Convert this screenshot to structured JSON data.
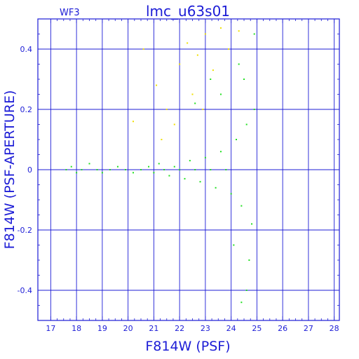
{
  "chart_data": {
    "type": "scatter",
    "title": "lmc_u63s01",
    "corner_label": "WF3",
    "xlabel": "F814W (PSF)",
    "ylabel": "F814W (PSF-APERTURE)",
    "xlim": [
      16.5,
      28.2
    ],
    "ylim": [
      -0.5,
      0.5
    ],
    "x_ticks": [
      17,
      18,
      19,
      20,
      21,
      22,
      23,
      24,
      25,
      26,
      27,
      28
    ],
    "y_ticks": [
      -0.4,
      -0.2,
      0,
      0.2,
      0.4
    ],
    "grid": true,
    "colors": {
      "axis": "#1c1cd6",
      "primary_points": "#22e022",
      "secondary_points": "#f0e000",
      "background": "#ffffff"
    },
    "series": [
      {
        "color": "#22e022",
        "points": [
          [
            17.6,
            0.0
          ],
          [
            17.8,
            0.01
          ],
          [
            18.0,
            -0.01
          ],
          [
            18.2,
            0.0
          ],
          [
            18.5,
            0.02
          ],
          [
            18.8,
            0.0
          ],
          [
            19.0,
            -0.01
          ],
          [
            19.3,
            0.0
          ],
          [
            19.6,
            0.01
          ],
          [
            19.9,
            0.0
          ],
          [
            20.2,
            -0.01
          ],
          [
            20.5,
            0.0
          ],
          [
            20.8,
            0.01
          ],
          [
            21.0,
            -0.01
          ],
          [
            21.2,
            0.02
          ],
          [
            21.4,
            0.0
          ],
          [
            21.6,
            -0.02
          ],
          [
            21.8,
            0.01
          ],
          [
            22.0,
            0.0
          ],
          [
            22.2,
            -0.03
          ],
          [
            22.4,
            0.03
          ],
          [
            22.6,
            0.0
          ],
          [
            22.8,
            -0.04
          ],
          [
            23.0,
            0.04
          ],
          [
            23.2,
            0.0
          ],
          [
            23.4,
            -0.06
          ],
          [
            23.6,
            0.06
          ],
          [
            23.8,
            0.0
          ],
          [
            24.0,
            -0.08
          ],
          [
            24.2,
            0.1
          ],
          [
            24.4,
            -0.12
          ],
          [
            24.6,
            0.15
          ],
          [
            24.8,
            -0.18
          ],
          [
            24.9,
            0.2
          ],
          [
            24.5,
            0.3
          ],
          [
            24.7,
            -0.3
          ],
          [
            24.3,
            0.35
          ],
          [
            24.6,
            -0.4
          ],
          [
            23.6,
            0.25
          ],
          [
            24.1,
            -0.25
          ],
          [
            24.9,
            0.45
          ],
          [
            23.2,
            0.3
          ],
          [
            22.6,
            0.22
          ],
          [
            24.4,
            -0.44
          ]
        ]
      },
      {
        "color": "#f0e000",
        "points": [
          [
            20.6,
            0.4
          ],
          [
            21.1,
            0.28
          ],
          [
            21.5,
            0.2
          ],
          [
            22.0,
            0.35
          ],
          [
            22.3,
            0.42
          ],
          [
            22.7,
            0.38
          ],
          [
            23.0,
            0.45
          ],
          [
            23.3,
            0.33
          ],
          [
            23.6,
            0.47
          ],
          [
            21.8,
            0.15
          ],
          [
            20.2,
            0.16
          ],
          [
            22.5,
            0.25
          ],
          [
            23.9,
            0.4
          ],
          [
            24.3,
            0.46
          ],
          [
            21.3,
            0.1
          ],
          [
            22.9,
            0.2
          ]
        ]
      }
    ]
  }
}
